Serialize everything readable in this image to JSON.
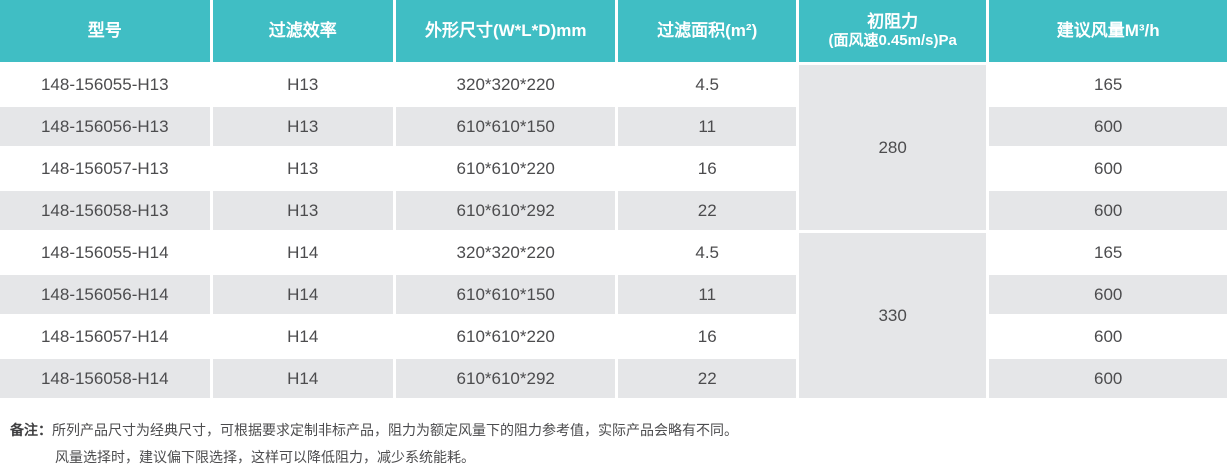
{
  "colors": {
    "header_bg": "#40BEC4",
    "header_text": "#FFFFFF",
    "row_bg": "#FFFFFF",
    "row_alt_bg": "#E5E6E8",
    "body_text": "#4C4C4E"
  },
  "table": {
    "columns": [
      {
        "key": "model",
        "label": "型号"
      },
      {
        "key": "efficiency",
        "label": "过滤效率"
      },
      {
        "key": "dimensions",
        "label": "外形尺寸(W*L*D)mm"
      },
      {
        "key": "area",
        "label": "过滤面积(m²)"
      },
      {
        "key": "resistance",
        "label": "初阻力",
        "sublabel": "(面风速0.45m/s)Pa"
      },
      {
        "key": "airflow",
        "label": "建议风量M³/h"
      }
    ],
    "groups": [
      {
        "resistance": "280",
        "rows": [
          {
            "model": "148-156055-H13",
            "efficiency": "H13",
            "dimensions": "320*320*220",
            "area": "4.5",
            "airflow": "165"
          },
          {
            "model": "148-156056-H13",
            "efficiency": "H13",
            "dimensions": "610*610*150",
            "area": "11",
            "airflow": "600"
          },
          {
            "model": "148-156057-H13",
            "efficiency": "H13",
            "dimensions": "610*610*220",
            "area": "16",
            "airflow": "600"
          },
          {
            "model": "148-156058-H13",
            "efficiency": "H13",
            "dimensions": "610*610*292",
            "area": "22",
            "airflow": "600"
          }
        ]
      },
      {
        "resistance": "330",
        "rows": [
          {
            "model": "148-156055-H14",
            "efficiency": "H14",
            "dimensions": "320*320*220",
            "area": "4.5",
            "airflow": "165"
          },
          {
            "model": "148-156056-H14",
            "efficiency": "H14",
            "dimensions": "610*610*150",
            "area": "11",
            "airflow": "600"
          },
          {
            "model": "148-156057-H14",
            "efficiency": "H14",
            "dimensions": "610*610*220",
            "area": "16",
            "airflow": "600"
          },
          {
            "model": "148-156058-H14",
            "efficiency": "H14",
            "dimensions": "610*610*292",
            "area": "22",
            "airflow": "600"
          }
        ]
      }
    ]
  },
  "notes": {
    "label": "备注：",
    "lines": [
      "所列产品尺寸为经典尺寸，可根据要求定制非标产品，阻力为额定风量下的阻力参考值，实际产品会略有不同。",
      "风量选择时，建议偏下限选择，这样可以降低阻力，减少系统能耗。"
    ]
  }
}
